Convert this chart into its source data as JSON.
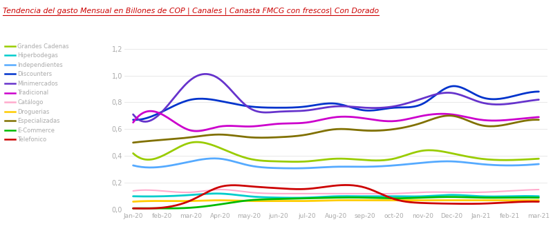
{
  "title": "Tendencia del gasto Mensual en Billones de COP | Canales | Canasta FMCG con frescos| Con Dorado",
  "background_color": "#ffffff",
  "ylim": [
    0.0,
    1.25
  ],
  "yticks": [
    0.0,
    0.2,
    0.4,
    0.6,
    0.8,
    1.0,
    1.2
  ],
  "ytick_labels": [
    "0,0",
    "0,2",
    "0,4",
    "0,6",
    "0,8",
    "1,0",
    "1,2"
  ],
  "months": [
    "Jan-20",
    "feb-20",
    "mar-20",
    "Apr-20",
    "may-20",
    "jun-20",
    "jul-20",
    "Aug-20",
    "sep-20",
    "oct-20",
    "nov-20",
    "Dec-20",
    "Jan-21",
    "feb-21",
    "mar-21"
  ],
  "title_color": "#cc0000",
  "tick_color": "#aaaaaa",
  "grid_color": "#e8e8e8",
  "series": [
    {
      "label": "Grandes Cadenas",
      "color": "#99cc00",
      "linewidth": 2.0,
      "values": [
        0.42,
        0.4,
        0.5,
        0.46,
        0.38,
        0.36,
        0.36,
        0.38,
        0.37,
        0.38,
        0.44,
        0.42,
        0.38,
        0.37,
        0.38
      ]
    },
    {
      "label": "Hiperbodegas",
      "color": "#00cccc",
      "linewidth": 2.0,
      "values": [
        0.1,
        0.1,
        0.11,
        0.12,
        0.1,
        0.09,
        0.09,
        0.1,
        0.1,
        0.1,
        0.1,
        0.11,
        0.1,
        0.1,
        0.1
      ]
    },
    {
      "label": "Independientes",
      "color": "#55aaff",
      "linewidth": 2.0,
      "values": [
        0.33,
        0.32,
        0.36,
        0.38,
        0.33,
        0.31,
        0.31,
        0.32,
        0.32,
        0.33,
        0.35,
        0.36,
        0.34,
        0.33,
        0.34
      ]
    },
    {
      "label": "Discounters",
      "color": "#0033cc",
      "linewidth": 2.0,
      "values": [
        0.67,
        0.73,
        0.82,
        0.81,
        0.77,
        0.76,
        0.77,
        0.79,
        0.74,
        0.76,
        0.79,
        0.92,
        0.84,
        0.84,
        0.88
      ]
    },
    {
      "label": "Minimercados",
      "color": "#6633cc",
      "linewidth": 2.0,
      "values": [
        0.71,
        0.73,
        0.97,
        0.97,
        0.76,
        0.73,
        0.74,
        0.77,
        0.76,
        0.77,
        0.83,
        0.87,
        0.8,
        0.79,
        0.82
      ]
    },
    {
      "label": "Tradicional",
      "color": "#cc00cc",
      "linewidth": 2.0,
      "values": [
        0.65,
        0.71,
        0.59,
        0.62,
        0.62,
        0.64,
        0.65,
        0.69,
        0.68,
        0.66,
        0.7,
        0.71,
        0.67,
        0.67,
        0.69
      ]
    },
    {
      "label": "Catálogo",
      "color": "#ffaacc",
      "linewidth": 1.5,
      "values": [
        0.14,
        0.14,
        0.13,
        0.15,
        0.13,
        0.12,
        0.12,
        0.12,
        0.12,
        0.12,
        0.13,
        0.13,
        0.13,
        0.14,
        0.15
      ]
    },
    {
      "label": "Droguerias",
      "color": "#ffcc00",
      "linewidth": 2.0,
      "values": [
        0.06,
        0.065,
        0.065,
        0.07,
        0.065,
        0.065,
        0.065,
        0.07,
        0.07,
        0.07,
        0.07,
        0.07,
        0.07,
        0.07,
        0.07
      ]
    },
    {
      "label": "Especializadas",
      "color": "#807000",
      "linewidth": 2.0,
      "values": [
        0.5,
        0.52,
        0.54,
        0.56,
        0.54,
        0.54,
        0.56,
        0.6,
        0.59,
        0.6,
        0.65,
        0.7,
        0.63,
        0.64,
        0.67
      ]
    },
    {
      "label": "E-Commerce",
      "color": "#00bb00",
      "linewidth": 2.0,
      "values": [
        0.01,
        0.01,
        0.015,
        0.04,
        0.07,
        0.08,
        0.085,
        0.09,
        0.09,
        0.085,
        0.09,
        0.095,
        0.09,
        0.09,
        0.09
      ]
    },
    {
      "label": "Telefonico",
      "color": "#cc0000",
      "linewidth": 2.0,
      "values": [
        0.01,
        0.015,
        0.07,
        0.17,
        0.175,
        0.16,
        0.155,
        0.18,
        0.165,
        0.08,
        0.05,
        0.045,
        0.045,
        0.055,
        0.06
      ]
    }
  ]
}
